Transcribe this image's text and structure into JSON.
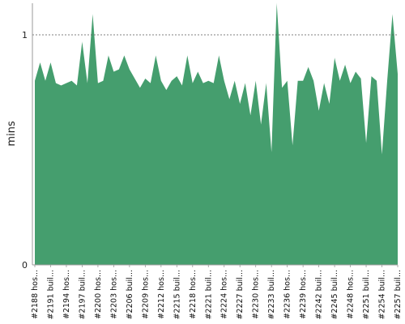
{
  "chart_data": {
    "type": "area",
    "ylabel": "mins",
    "ylim": [
      0,
      1.15
    ],
    "y_ticks": [
      0,
      1
    ],
    "reference_line": {
      "y": 1,
      "style": "dashed"
    },
    "series": [
      {
        "color": "#459e6e",
        "values": [
          0.8,
          0.88,
          0.8,
          0.88,
          0.79,
          0.78,
          0.79,
          0.8,
          0.78,
          0.97,
          0.79,
          1.09,
          0.79,
          0.8,
          0.91,
          0.84,
          0.85,
          0.91,
          0.85,
          0.81,
          0.77,
          0.81,
          0.79,
          0.91,
          0.8,
          0.76,
          0.8,
          0.82,
          0.78,
          0.91,
          0.79,
          0.84,
          0.79,
          0.8,
          0.79,
          0.91,
          0.8,
          0.72,
          0.8,
          0.7,
          0.79,
          0.65,
          0.8,
          0.61,
          0.79,
          0.49,
          1.15,
          0.77,
          0.8,
          0.52,
          0.8,
          0.8,
          0.86,
          0.8,
          0.67,
          0.79,
          0.7,
          0.9,
          0.8,
          0.87,
          0.79,
          0.84,
          0.81,
          0.53,
          0.82,
          0.8,
          0.48,
          0.8,
          1.09,
          0.83
        ]
      }
    ],
    "x_tick_labels": [
      "#2188 hos...",
      "#2191 buil...",
      "#2194 hos...",
      "#2197 buil...",
      "#2200 hos...",
      "#2203 hos...",
      "#2206 buil...",
      "#2209 hos...",
      "#2212 hos...",
      "#2215 buil...",
      "#2218 hos...",
      "#2221 buil...",
      "#2224 hos...",
      "#2227 buil...",
      "#2230 hos...",
      "#2233 buil...",
      "#2236 hos...",
      "#2239 hos...",
      "#2242 buil...",
      "#2245 buil...",
      "#2248 hos...",
      "#2251 buil...",
      "#2254 buil...",
      "#2257 buil..."
    ],
    "grid": false
  }
}
